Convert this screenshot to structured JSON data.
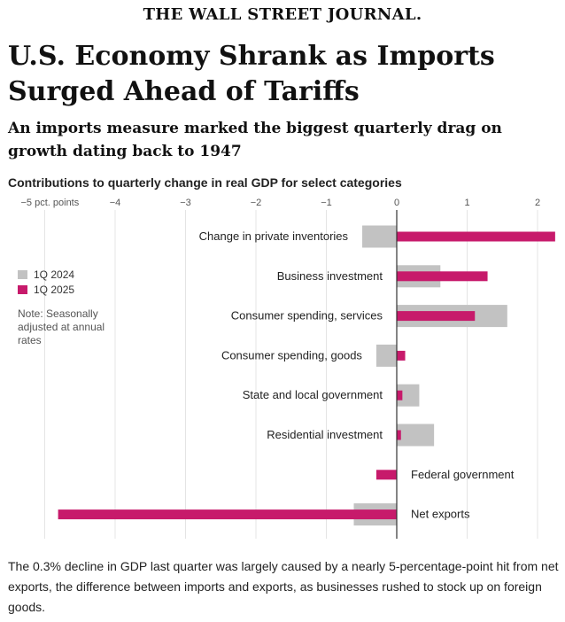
{
  "masthead": "THE WALL STREET JOURNAL.",
  "headline": "U.S. Economy Shrank as Imports Surged Ahead of Tariffs",
  "dek": "An imports measure marked the biggest quarterly drag on growth dating back to 1947",
  "caption": "The 0.3% decline in GDP last quarter was largely caused by a nearly 5-percentage-point hit from net exports, the difference between imports and exports, as businesses rushed to stock up on foreign goods.",
  "legend": {
    "items": [
      {
        "label": "1Q 2024",
        "color": "#c2c2c2"
      },
      {
        "label": "1Q 2025",
        "color": "#c71a6b"
      }
    ],
    "note": "Note: Seasonally adjusted at annual rates"
  },
  "chart_data": {
    "type": "bar",
    "orientation": "horizontal",
    "title": "Contributions to quarterly change in real GDP for select categories",
    "xlabel": "pct. points",
    "xlim": [
      -5.4,
      2.3
    ],
    "ticks": [
      {
        "value": -5,
        "label": "−5 pct. points"
      },
      {
        "value": -4,
        "label": "−4"
      },
      {
        "value": -3,
        "label": "−3"
      },
      {
        "value": -2,
        "label": "−2"
      },
      {
        "value": -1,
        "label": "−1"
      },
      {
        "value": 0,
        "label": "0"
      },
      {
        "value": 1,
        "label": "1"
      },
      {
        "value": 2,
        "label": "2"
      }
    ],
    "categories": [
      "Change in private inventories",
      "Business investment",
      "Consumer spending, services",
      "Consumer spending, goods",
      "State and local government",
      "Residential investment",
      "Federal government",
      "Net exports"
    ],
    "series": [
      {
        "name": "1Q 2024",
        "color": "#c2c2c2",
        "values": [
          -0.49,
          0.62,
          1.57,
          -0.29,
          0.32,
          0.53,
          0.0,
          -0.61
        ]
      },
      {
        "name": "1Q 2025",
        "color": "#c71a6b",
        "values": [
          2.25,
          1.29,
          1.11,
          0.12,
          0.08,
          0.06,
          -0.29,
          -4.81
        ]
      }
    ]
  }
}
